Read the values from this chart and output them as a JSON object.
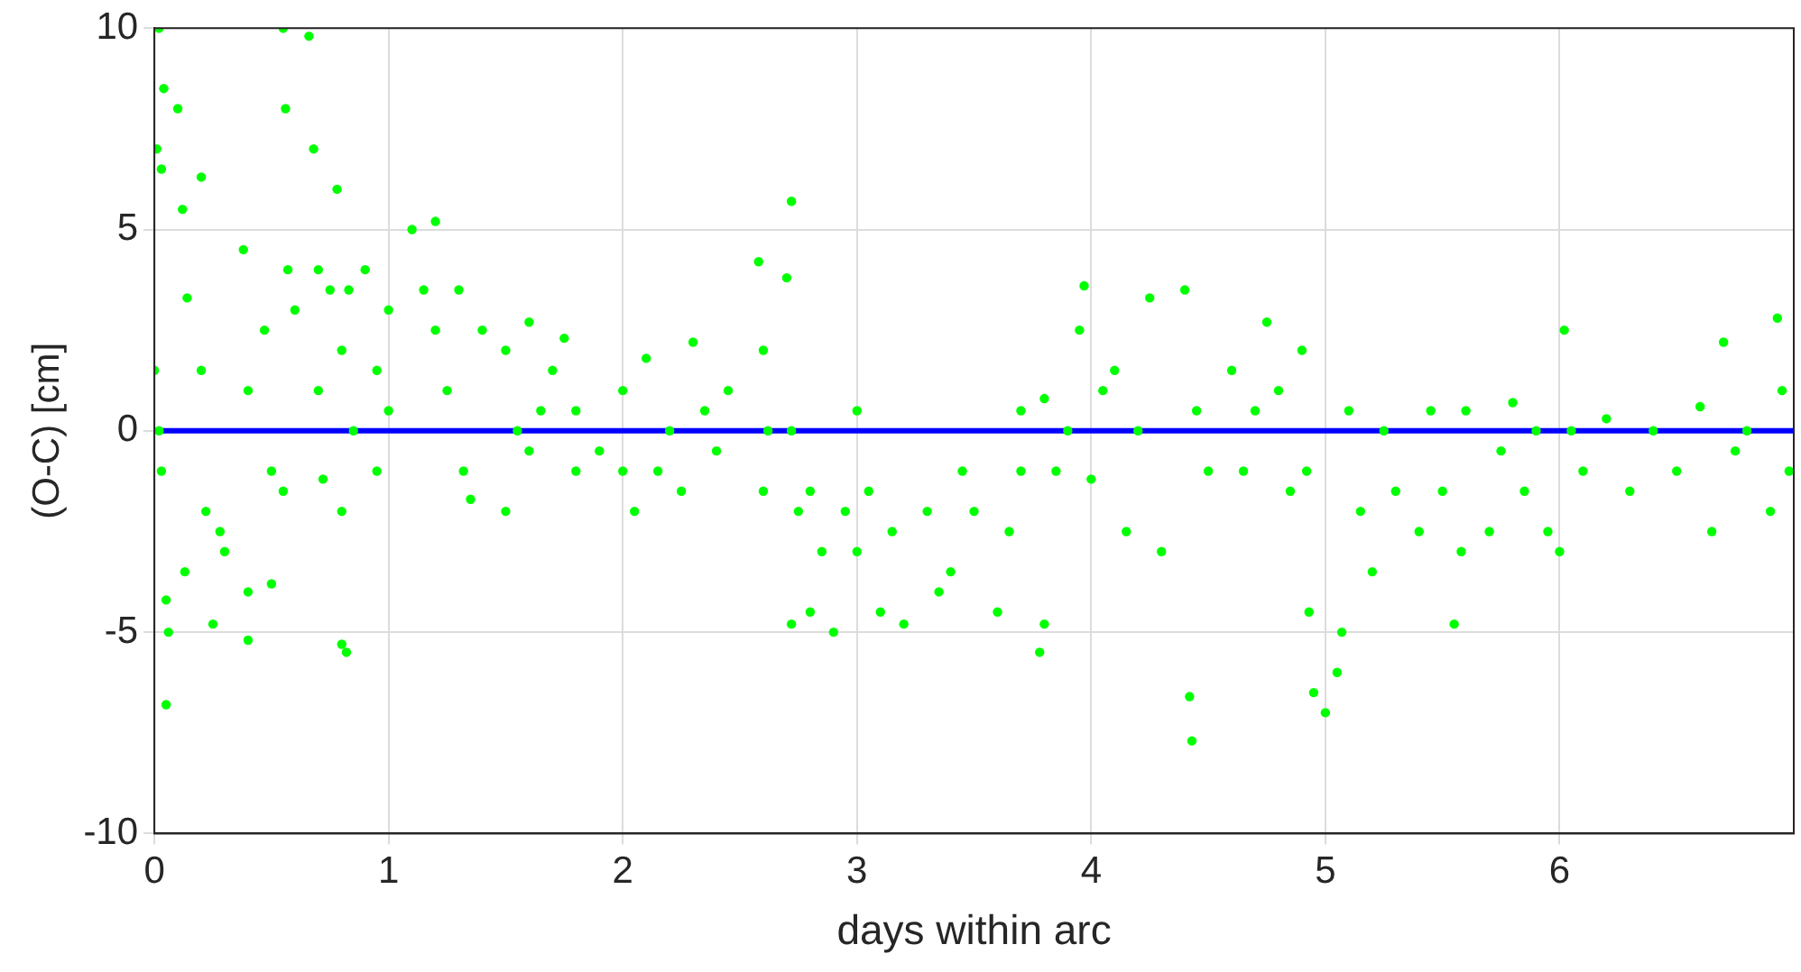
{
  "chart_data": {
    "type": "scatter",
    "xlabel": "days within arc",
    "ylabel": "(O-C) [cm]",
    "xlim": [
      0,
      7
    ],
    "ylim": [
      -10,
      10
    ],
    "xticks": [
      0,
      1,
      2,
      3,
      4,
      5,
      6
    ],
    "yticks": [
      -10,
      -5,
      0,
      5,
      10
    ],
    "grid": true,
    "marker": "circle",
    "ref_lines": [
      {
        "axis": "y",
        "value": 0,
        "color": "#0000ff"
      }
    ],
    "series": [
      {
        "color": "#00ff00",
        "x": [
          0.01,
          0.02,
          0.03,
          0.04,
          0.0,
          0.02,
          0.03,
          0.05,
          0.05,
          0.06,
          0.1,
          0.12,
          0.14,
          0.13,
          0.2,
          0.2,
          0.22,
          0.25,
          0.3,
          0.28,
          0.38,
          0.4,
          0.4,
          0.4,
          0.47,
          0.5,
          0.5,
          0.55,
          0.56,
          0.57,
          0.55,
          0.6,
          0.66,
          0.68,
          0.7,
          0.7,
          0.72,
          0.75,
          0.78,
          0.8,
          0.8,
          0.8,
          0.82,
          0.83,
          0.85,
          0.9,
          0.95,
          0.95,
          1.0,
          1.0,
          1.1,
          1.15,
          1.2,
          1.2,
          1.25,
          1.3,
          1.32,
          1.35,
          1.4,
          1.5,
          1.5,
          1.55,
          1.6,
          1.65,
          1.6,
          1.7,
          1.75,
          1.8,
          1.8,
          1.9,
          2.0,
          2.0,
          2.05,
          2.1,
          2.15,
          2.2,
          2.25,
          2.3,
          2.35,
          2.4,
          2.45,
          2.58,
          2.6,
          2.62,
          2.6,
          2.72,
          2.7,
          2.72,
          2.72,
          2.75,
          2.8,
          2.8,
          2.85,
          2.9,
          2.95,
          3.0,
          3.0,
          3.05,
          3.1,
          3.15,
          3.2,
          3.3,
          3.35,
          3.4,
          3.45,
          3.5,
          3.6,
          3.65,
          3.7,
          3.7,
          3.78,
          3.8,
          3.8,
          3.85,
          3.9,
          3.95,
          3.97,
          4.0,
          4.05,
          4.1,
          4.15,
          4.2,
          4.25,
          4.3,
          4.4,
          4.42,
          4.43,
          4.45,
          4.5,
          4.6,
          4.65,
          4.7,
          4.75,
          4.8,
          4.85,
          4.9,
          4.92,
          4.93,
          4.95,
          5.0,
          5.05,
          5.07,
          5.1,
          5.15,
          5.2,
          5.25,
          5.3,
          5.4,
          5.45,
          5.5,
          5.55,
          5.58,
          5.6,
          5.7,
          5.75,
          5.8,
          5.85,
          5.9,
          5.95,
          6.0,
          6.02,
          6.05,
          6.1,
          6.2,
          6.3,
          6.4,
          6.5,
          6.6,
          6.65,
          6.7,
          6.75,
          6.8,
          6.9,
          6.93,
          6.95,
          6.98
        ],
        "values": [
          7,
          10,
          6.5,
          8.5,
          1.5,
          0,
          -1,
          -4.2,
          -6.8,
          -5,
          8,
          5.5,
          3.3,
          -3.5,
          6.3,
          1.5,
          -2,
          -4.8,
          -3,
          -2.5,
          4.5,
          1,
          -5.2,
          -4,
          2.5,
          -1,
          -3.8,
          10,
          8,
          4,
          -1.5,
          3,
          9.8,
          7,
          4,
          1,
          -1.2,
          3.5,
          6,
          2,
          -2,
          -5.3,
          -5.5,
          3.5,
          0,
          4,
          1.5,
          -1,
          3,
          0.5,
          5,
          3.5,
          5.2,
          2.5,
          1,
          3.5,
          -1,
          -1.7,
          2.5,
          2,
          -2,
          0,
          2.7,
          0.5,
          -0.5,
          1.5,
          2.3,
          0.5,
          -1,
          -0.5,
          -1,
          1,
          -2,
          1.8,
          -1,
          0,
          -1.5,
          2.2,
          0.5,
          -0.5,
          1,
          4.2,
          2,
          0,
          -1.5,
          5.7,
          3.8,
          0,
          -4.8,
          -2,
          -1.5,
          -4.5,
          -3,
          -5,
          -2,
          0.5,
          -3,
          -1.5,
          -4.5,
          -2.5,
          -4.8,
          -2,
          -4,
          -3.5,
          -1,
          -2,
          -4.5,
          -2.5,
          -1,
          0.5,
          -5.5,
          -4.8,
          0.8,
          -1,
          0,
          2.5,
          3.6,
          -1.2,
          1,
          1.5,
          -2.5,
          0,
          3.3,
          -3,
          3.5,
          -6.6,
          -7.7,
          0.5,
          -1,
          1.5,
          -1,
          0.5,
          2.7,
          1,
          -1.5,
          2,
          -1,
          -4.5,
          -6.5,
          -7,
          -6,
          -5,
          0.5,
          -2,
          -3.5,
          0,
          -1.5,
          -2.5,
          0.5,
          -1.5,
          -4.8,
          -3,
          0.5,
          -2.5,
          -0.5,
          0.7,
          -1.5,
          0,
          -2.5,
          -3,
          2.5,
          0,
          -1,
          0.3,
          -1.5,
          0,
          -1,
          0.6,
          -2.5,
          2.2,
          -0.5,
          0,
          -2,
          2.8,
          1,
          -1
        ]
      }
    ]
  }
}
